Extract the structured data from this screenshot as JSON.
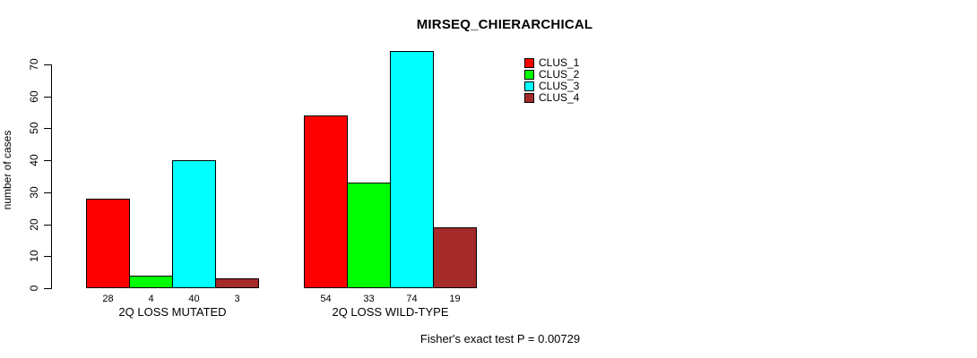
{
  "chart_data": {
    "type": "bar",
    "title": "MIRSEQ_CHIERARCHICAL",
    "ylabel": "number of cases",
    "xlabel": "",
    "ylim": [
      0,
      70
    ],
    "yticks": [
      0,
      10,
      20,
      30,
      40,
      50,
      60,
      70
    ],
    "grid": false,
    "legend_position": "top-right",
    "categories": [
      "2Q LOSS MUTATED",
      "2Q LOSS WILD-TYPE"
    ],
    "series": [
      {
        "name": "CLUS_1",
        "color": "#FF0000",
        "values": [
          28,
          54
        ]
      },
      {
        "name": "CLUS_2",
        "color": "#00FF00",
        "values": [
          4,
          33
        ]
      },
      {
        "name": "CLUS_3",
        "color": "#00FFFF",
        "values": [
          40,
          74
        ]
      },
      {
        "name": "CLUS_4",
        "color": "#A52A2A",
        "values": [
          3,
          19
        ]
      }
    ],
    "bar_value_labels_shown": true,
    "annotation": "Fisher's exact test P = 0.00729",
    "colors": {
      "background": "#FFFFFF",
      "text": "#000000",
      "bar_border": "#000000",
      "axis": "#000000"
    }
  }
}
